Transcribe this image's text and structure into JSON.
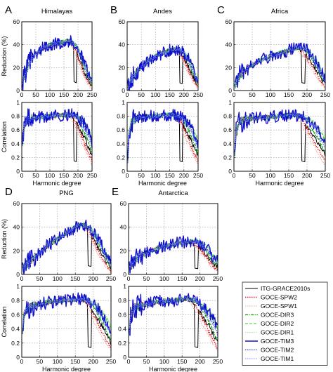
{
  "legend": [
    {
      "name": "ITG-GRACE2010s",
      "color": "#000000",
      "dash": "solid",
      "width": 1
    },
    {
      "name": "GOCE-SPW2",
      "color": "#e41a1c",
      "dash": "dot",
      "width": 1.4
    },
    {
      "name": "GOCE-SPW1",
      "color": "#f4a0a0",
      "dash": "dot",
      "width": 1
    },
    {
      "name": "GOCE-DIR3",
      "color": "#00a000",
      "dash": "dashdot",
      "width": 1.2
    },
    {
      "name": "GOCE-DIR2",
      "color": "#33cc33",
      "dash": "dash",
      "width": 1
    },
    {
      "name": "GOCE-DIR1",
      "color": "#99ee99",
      "dash": "dot",
      "width": 1
    },
    {
      "name": "GOCE-TIM3",
      "color": "#1010cc",
      "dash": "solid",
      "width": 1.4
    },
    {
      "name": "GOCE-TIM2",
      "color": "#2040c0",
      "dash": "dot",
      "width": 1.2
    },
    {
      "name": "GOCE-TIM1",
      "color": "#8080ff",
      "dash": "dot",
      "width": 1
    }
  ],
  "chart_data": [
    {
      "id": "A",
      "type": "line",
      "title": "Himalayas",
      "letter": "A",
      "xlabel": "Harmonic degree",
      "panels": [
        {
          "ylabel": "Reduction (%)",
          "xlim": [
            0,
            250
          ],
          "ylim": [
            0,
            60
          ],
          "xticks": [
            0,
            50,
            100,
            150,
            200,
            250
          ],
          "yticks": [
            0,
            20,
            40,
            60
          ],
          "profile": [
            [
              2,
              5
            ],
            [
              10,
              15
            ],
            [
              20,
              20
            ],
            [
              30,
              26
            ],
            [
              40,
              30
            ],
            [
              50,
              32
            ],
            [
              60,
              34
            ],
            [
              70,
              36
            ],
            [
              80,
              38
            ],
            [
              90,
              39
            ],
            [
              100,
              40
            ],
            [
              110,
              40
            ],
            [
              120,
              41
            ],
            [
              130,
              41
            ],
            [
              140,
              42
            ],
            [
              150,
              42
            ],
            [
              160,
              43
            ],
            [
              170,
              43
            ],
            [
              180,
              42
            ],
            [
              190,
              40
            ],
            [
              200,
              36
            ],
            [
              210,
              31
            ],
            [
              220,
              25
            ],
            [
              230,
              19
            ],
            [
              240,
              13
            ],
            [
              250,
              8
            ]
          ]
        },
        {
          "ylabel": "Correlation",
          "xlim": [
            0,
            250
          ],
          "ylim": [
            0,
            1
          ],
          "xticks": [
            0,
            50,
            100,
            150,
            200,
            250
          ],
          "yticks": [
            0,
            0.2,
            0.4,
            0.6,
            0.8,
            1
          ],
          "profile": [
            [
              2,
              0.35
            ],
            [
              8,
              0.65
            ],
            [
              20,
              0.75
            ],
            [
              50,
              0.78
            ],
            [
              100,
              0.8
            ],
            [
              150,
              0.82
            ],
            [
              180,
              0.82
            ],
            [
              200,
              0.78
            ],
            [
              220,
              0.7
            ],
            [
              240,
              0.55
            ],
            [
              250,
              0.42
            ]
          ]
        }
      ]
    },
    {
      "id": "B",
      "type": "line",
      "title": "Andes",
      "letter": "B",
      "xlabel": "Harmonic degree",
      "panels": [
        {
          "ylabel": "",
          "xlim": [
            0,
            250
          ],
          "ylim": [
            0,
            60
          ],
          "xticks": [
            0,
            50,
            100,
            150,
            200,
            250
          ],
          "yticks": [
            0,
            20,
            40,
            60
          ],
          "profile": [
            [
              2,
              2
            ],
            [
              10,
              8
            ],
            [
              20,
              12
            ],
            [
              30,
              15
            ],
            [
              50,
              20
            ],
            [
              70,
              25
            ],
            [
              100,
              30
            ],
            [
              130,
              33
            ],
            [
              150,
              35
            ],
            [
              170,
              36
            ],
            [
              185,
              36
            ],
            [
              200,
              33
            ],
            [
              215,
              28
            ],
            [
              230,
              20
            ],
            [
              240,
              14
            ],
            [
              250,
              9
            ]
          ]
        },
        {
          "ylabel": "",
          "xlim": [
            0,
            250
          ],
          "ylim": [
            0,
            1
          ],
          "xticks": [
            0,
            50,
            100,
            150,
            200,
            250
          ],
          "yticks": [
            0,
            0.2,
            0.4,
            0.6,
            0.8,
            1
          ],
          "profile": [
            [
              2,
              0.1
            ],
            [
              6,
              0.5
            ],
            [
              15,
              0.72
            ],
            [
              40,
              0.78
            ],
            [
              80,
              0.8
            ],
            [
              120,
              0.81
            ],
            [
              160,
              0.82
            ],
            [
              185,
              0.8
            ],
            [
              200,
              0.76
            ],
            [
              220,
              0.68
            ],
            [
              240,
              0.52
            ],
            [
              250,
              0.4
            ]
          ]
        }
      ]
    },
    {
      "id": "C",
      "type": "line",
      "title": "Africa",
      "letter": "C",
      "xlabel": "Harmonic degree",
      "panels": [
        {
          "ylabel": "",
          "xlim": [
            0,
            250
          ],
          "ylim": [
            0,
            60
          ],
          "xticks": [
            0,
            50,
            100,
            150,
            200,
            250
          ],
          "yticks": [
            0,
            20,
            40,
            60
          ],
          "profile": [
            [
              2,
              3
            ],
            [
              10,
              10
            ],
            [
              20,
              14
            ],
            [
              30,
              18
            ],
            [
              50,
              22
            ],
            [
              70,
              26
            ],
            [
              100,
              30
            ],
            [
              130,
              33
            ],
            [
              150,
              35
            ],
            [
              170,
              37
            ],
            [
              185,
              37
            ],
            [
              200,
              35
            ],
            [
              215,
              30
            ],
            [
              230,
              23
            ],
            [
              240,
              16
            ],
            [
              250,
              10
            ]
          ]
        },
        {
          "ylabel": "",
          "xlim": [
            0,
            250
          ],
          "ylim": [
            0,
            1
          ],
          "xticks": [
            0,
            50,
            100,
            150,
            200,
            250
          ],
          "yticks": [
            0,
            0.2,
            0.4,
            0.6,
            0.8,
            1
          ],
          "profile": [
            [
              2,
              0.2
            ],
            [
              6,
              0.55
            ],
            [
              15,
              0.72
            ],
            [
              40,
              0.76
            ],
            [
              80,
              0.78
            ],
            [
              120,
              0.8
            ],
            [
              160,
              0.82
            ],
            [
              185,
              0.8
            ],
            [
              200,
              0.76
            ],
            [
              220,
              0.68
            ],
            [
              240,
              0.52
            ],
            [
              250,
              0.42
            ]
          ]
        }
      ]
    },
    {
      "id": "D",
      "type": "line",
      "title": "PNG",
      "letter": "D",
      "xlabel": "Harmonic degree",
      "panels": [
        {
          "ylabel": "Reduction (%)",
          "xlim": [
            0,
            250
          ],
          "ylim": [
            0,
            60
          ],
          "xticks": [
            0,
            50,
            100,
            150,
            200,
            250
          ],
          "yticks": [
            0,
            20,
            40,
            60
          ],
          "profile": [
            [
              2,
              5
            ],
            [
              10,
              8
            ],
            [
              20,
              10
            ],
            [
              30,
              13
            ],
            [
              50,
              18
            ],
            [
              70,
              24
            ],
            [
              100,
              30
            ],
            [
              130,
              36
            ],
            [
              150,
              40
            ],
            [
              165,
              42
            ],
            [
              180,
              41
            ],
            [
              195,
              38
            ],
            [
              210,
              32
            ],
            [
              225,
              24
            ],
            [
              240,
              15
            ],
            [
              250,
              9
            ]
          ]
        },
        {
          "ylabel": "Correlation",
          "xlim": [
            0,
            250
          ],
          "ylim": [
            0,
            1
          ],
          "xticks": [
            0,
            50,
            100,
            150,
            200,
            250
          ],
          "yticks": [
            0,
            0.2,
            0.4,
            0.6,
            0.8,
            1
          ],
          "profile": [
            [
              2,
              0.3
            ],
            [
              6,
              0.6
            ],
            [
              15,
              0.7
            ],
            [
              40,
              0.74
            ],
            [
              80,
              0.78
            ],
            [
              120,
              0.8
            ],
            [
              160,
              0.82
            ],
            [
              185,
              0.8
            ],
            [
              200,
              0.75
            ],
            [
              220,
              0.66
            ],
            [
              240,
              0.5
            ],
            [
              250,
              0.38
            ]
          ]
        }
      ]
    },
    {
      "id": "E",
      "type": "line",
      "title": "Antarctica",
      "letter": "E",
      "xlabel": "Harmonic degree",
      "panels": [
        {
          "ylabel": "",
          "xlim": [
            0,
            250
          ],
          "ylim": [
            0,
            60
          ],
          "xticks": [
            0,
            50,
            100,
            150,
            200,
            250
          ],
          "yticks": [
            0,
            20,
            40,
            60
          ],
          "profile": [
            [
              2,
              5
            ],
            [
              10,
              9
            ],
            [
              20,
              12
            ],
            [
              30,
              15
            ],
            [
              50,
              18
            ],
            [
              70,
              21
            ],
            [
              100,
              24
            ],
            [
              130,
              26
            ],
            [
              150,
              27
            ],
            [
              170,
              28
            ],
            [
              190,
              28
            ],
            [
              205,
              26
            ],
            [
              220,
              22
            ],
            [
              235,
              16
            ],
            [
              250,
              10
            ]
          ]
        },
        {
          "ylabel": "",
          "xlim": [
            0,
            250
          ],
          "ylim": [
            0,
            1
          ],
          "xticks": [
            0,
            50,
            100,
            150,
            200,
            250
          ],
          "yticks": [
            0,
            0.2,
            0.4,
            0.6,
            0.8,
            1
          ],
          "profile": [
            [
              2,
              0.3
            ],
            [
              6,
              0.6
            ],
            [
              15,
              0.7
            ],
            [
              40,
              0.74
            ],
            [
              80,
              0.78
            ],
            [
              120,
              0.8
            ],
            [
              160,
              0.82
            ],
            [
              185,
              0.8
            ],
            [
              200,
              0.75
            ],
            [
              220,
              0.66
            ],
            [
              240,
              0.5
            ],
            [
              250,
              0.38
            ]
          ]
        }
      ]
    }
  ]
}
